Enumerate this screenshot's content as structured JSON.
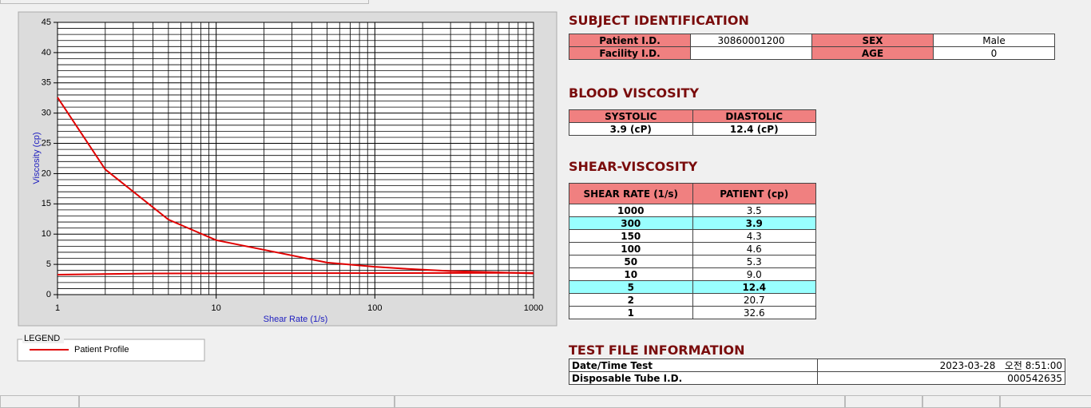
{
  "chart_data": {
    "type": "line",
    "xlabel": "Shear Rate (1/s)",
    "ylabel": "Viscosity (cp)",
    "xscale": "log",
    "xlim": [
      1,
      1000
    ],
    "xticks": [
      1,
      10,
      100,
      1000
    ],
    "xminorticks": [
      2,
      3,
      4,
      5,
      6,
      7,
      8,
      9,
      20,
      30,
      40,
      50,
      60,
      70,
      80,
      90,
      200,
      300,
      400,
      500,
      600,
      700,
      800,
      900
    ],
    "ylim": [
      0,
      45
    ],
    "yticks": [
      0,
      5,
      10,
      15,
      20,
      25,
      30,
      35,
      40,
      45
    ],
    "yminorticks": [
      1,
      2,
      3,
      4,
      6,
      7,
      8,
      9,
      11,
      12,
      13,
      14,
      16,
      17,
      18,
      19,
      21,
      22,
      23,
      24,
      26,
      27,
      28,
      29,
      31,
      32,
      33,
      34,
      36,
      37,
      38,
      39,
      41,
      42,
      43,
      44
    ],
    "grid": true,
    "legend_title": "LEGEND",
    "series": [
      {
        "name": "Patient Profile",
        "color": "#e00000",
        "x": [
          1,
          2,
          5,
          10,
          50,
          100,
          150,
          300,
          1000
        ],
        "values": [
          32.6,
          20.7,
          12.4,
          9.0,
          5.3,
          4.6,
          4.3,
          3.9,
          3.5
        ]
      },
      {
        "color": "#e00000",
        "x": [
          1,
          4,
          1000
        ],
        "values": [
          3.3,
          3.5,
          3.6
        ]
      }
    ]
  },
  "subject": {
    "title": "SUBJECT IDENTIFICATION",
    "rows": [
      [
        "Patient I.D.",
        "30860001200",
        "SEX",
        "Male"
      ],
      [
        "Facility I.D.",
        null,
        "AGE",
        "0"
      ]
    ]
  },
  "blood": {
    "title": "BLOOD VISCOSITY",
    "headers": [
      "SYSTOLIC",
      "DIASTOLIC"
    ],
    "values": [
      "3.9 (cP)",
      "12.4 (cP)"
    ]
  },
  "shear": {
    "title": "SHEAR-VISCOSITY",
    "headers": [
      "SHEAR RATE (1/s)",
      "PATIENT (cp)"
    ],
    "rows": [
      [
        "1000",
        "3.5"
      ],
      [
        "300",
        "3.9"
      ],
      [
        "150",
        "4.3"
      ],
      [
        "100",
        "4.6"
      ],
      [
        "50",
        "5.3"
      ],
      [
        "10",
        "9.0"
      ],
      [
        "5",
        "12.4"
      ],
      [
        "2",
        "20.7"
      ],
      [
        "1",
        "32.6"
      ]
    ],
    "highlight_rows": [
      1,
      6
    ]
  },
  "test_file": {
    "title": "TEST FILE INFORMATION",
    "rows": [
      [
        "Date/Time Test",
        "2023-03-28   오전 8:51:00"
      ],
      [
        "Disposable Tube I.D.",
        "000542635"
      ]
    ]
  }
}
